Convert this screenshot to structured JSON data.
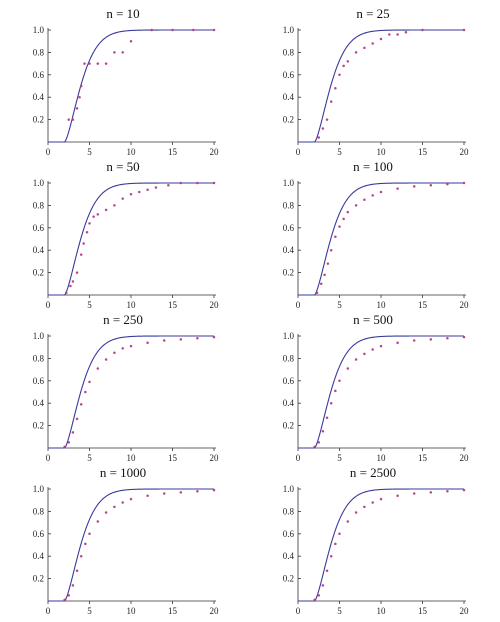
{
  "chart_data": [
    {
      "type": "line",
      "title": "n = 10",
      "x_ticks": [
        0,
        5,
        10,
        15,
        20
      ],
      "y_ticks": [
        0.2,
        0.4,
        0.6,
        0.8,
        1.0
      ],
      "xlim": [
        0,
        20
      ],
      "ylim": [
        0,
        1
      ],
      "series": [
        {
          "type": "line",
          "color": "#3a3a9c",
          "values": "smooth theoretical CDF (0 to 20)"
        },
        {
          "type": "scatter",
          "color": "#b23a8a",
          "x": [
            2.5,
            3.0,
            3.5,
            3.8,
            4.0,
            4.4,
            5.0,
            6.0,
            7.0,
            8.0,
            9.0,
            10.0,
            12.5,
            15.0,
            17.5,
            20.0
          ],
          "y": [
            0.2,
            0.2,
            0.3,
            0.4,
            0.5,
            0.7,
            0.7,
            0.7,
            0.7,
            0.8,
            0.8,
            0.9,
            1.0,
            1.0,
            1.0,
            1.0
          ]
        }
      ]
    },
    {
      "type": "line",
      "title": "n = 25",
      "x_ticks": [
        0,
        5,
        10,
        15,
        20
      ],
      "y_ticks": [
        0.2,
        0.4,
        0.6,
        0.8,
        1.0
      ],
      "xlim": [
        0,
        20
      ],
      "ylim": [
        0,
        1
      ],
      "series": [
        {
          "type": "line",
          "color": "#3a3a9c",
          "values": "smooth theoretical CDF (0 to 20)"
        },
        {
          "type": "scatter",
          "color": "#b23a8a",
          "x": [
            2.5,
            3.0,
            3.5,
            4.0,
            4.5,
            5.0,
            5.5,
            6.0,
            7.0,
            8.0,
            9.0,
            10.0,
            11.0,
            12.0,
            13.0,
            15.0,
            20.0
          ],
          "y": [
            0.04,
            0.12,
            0.2,
            0.36,
            0.48,
            0.6,
            0.68,
            0.72,
            0.8,
            0.84,
            0.88,
            0.92,
            0.96,
            0.96,
            0.98,
            1.0,
            1.0
          ]
        }
      ]
    },
    {
      "type": "line",
      "title": "n = 50",
      "x_ticks": [
        0,
        5,
        10,
        15,
        20
      ],
      "y_ticks": [
        0.2,
        0.4,
        0.6,
        0.8,
        1.0
      ],
      "xlim": [
        0,
        20
      ],
      "ylim": [
        0,
        1
      ],
      "series": [
        {
          "type": "line",
          "color": "#3a3a9c",
          "values": "smooth theoretical CDF (0 to 20)"
        },
        {
          "type": "scatter",
          "color": "#b23a8a",
          "x": [
            2.2,
            2.7,
            3.0,
            3.5,
            4.0,
            4.3,
            4.7,
            5.0,
            5.5,
            6.0,
            7.0,
            8.0,
            9.0,
            10.0,
            11.0,
            12.0,
            13.0,
            14.5,
            16.0,
            18.0,
            20.0
          ],
          "y": [
            0.02,
            0.08,
            0.12,
            0.2,
            0.36,
            0.46,
            0.56,
            0.64,
            0.7,
            0.72,
            0.76,
            0.8,
            0.86,
            0.9,
            0.92,
            0.94,
            0.96,
            0.98,
            1.0,
            1.0,
            1.0
          ]
        }
      ]
    },
    {
      "type": "line",
      "title": "n = 100",
      "x_ticks": [
        0,
        5,
        10,
        15,
        20
      ],
      "y_ticks": [
        0.2,
        0.4,
        0.6,
        0.8,
        1.0
      ],
      "xlim": [
        0,
        20
      ],
      "ylim": [
        0,
        1
      ],
      "series": [
        {
          "type": "line",
          "color": "#3a3a9c",
          "values": "smooth theoretical CDF (0 to 20)"
        },
        {
          "type": "scatter",
          "color": "#b23a8a",
          "x": [
            2.3,
            2.8,
            3.2,
            3.6,
            4.0,
            4.5,
            5.0,
            5.5,
            6.0,
            7.0,
            8.0,
            9.0,
            10.0,
            12.0,
            14.0,
            16.0,
            18.0,
            20.0
          ],
          "y": [
            0.02,
            0.1,
            0.18,
            0.28,
            0.4,
            0.52,
            0.61,
            0.68,
            0.74,
            0.8,
            0.85,
            0.89,
            0.92,
            0.95,
            0.97,
            0.98,
            0.99,
            1.0
          ]
        }
      ]
    },
    {
      "type": "line",
      "title": "n = 250",
      "x_ticks": [
        0,
        5,
        10,
        15,
        20
      ],
      "y_ticks": [
        0.2,
        0.4,
        0.6,
        0.8,
        1.0
      ],
      "xlim": [
        0,
        20
      ],
      "ylim": [
        0,
        1
      ],
      "series": [
        {
          "type": "line",
          "color": "#3a3a9c",
          "values": "smooth theoretical CDF (0 to 20)"
        },
        {
          "type": "scatter",
          "color": "#b23a8a",
          "x": [
            2.0,
            2.5,
            3.0,
            3.5,
            4.0,
            4.5,
            5.0,
            6.0,
            7.0,
            8.0,
            9.0,
            10.0,
            12.0,
            14.0,
            16.0,
            18.0,
            20.0
          ],
          "y": [
            0.01,
            0.05,
            0.14,
            0.26,
            0.39,
            0.5,
            0.59,
            0.71,
            0.79,
            0.85,
            0.89,
            0.91,
            0.94,
            0.96,
            0.97,
            0.98,
            0.99
          ]
        }
      ]
    },
    {
      "type": "line",
      "title": "n = 500",
      "x_ticks": [
        0,
        5,
        10,
        15,
        20
      ],
      "y_ticks": [
        0.2,
        0.4,
        0.6,
        0.8,
        1.0
      ],
      "xlim": [
        0,
        20
      ],
      "ylim": [
        0,
        1
      ],
      "series": [
        {
          "type": "line",
          "color": "#3a3a9c",
          "values": "smooth theoretical CDF (0 to 20)"
        },
        {
          "type": "scatter",
          "color": "#b23a8a",
          "x": [
            2.0,
            2.5,
            3.0,
            3.5,
            4.0,
            4.5,
            5.0,
            6.0,
            7.0,
            8.0,
            9.0,
            10.0,
            12.0,
            14.0,
            16.0,
            18.0,
            20.0
          ],
          "y": [
            0.01,
            0.05,
            0.15,
            0.27,
            0.4,
            0.51,
            0.6,
            0.71,
            0.79,
            0.84,
            0.88,
            0.91,
            0.94,
            0.96,
            0.97,
            0.98,
            0.99
          ]
        }
      ]
    },
    {
      "type": "line",
      "title": "n = 1000",
      "x_ticks": [
        0,
        5,
        10,
        15,
        20
      ],
      "y_ticks": [
        0.2,
        0.4,
        0.6,
        0.8,
        1.0
      ],
      "xlim": [
        0,
        20
      ],
      "ylim": [
        0,
        1
      ],
      "series": [
        {
          "type": "line",
          "color": "#3a3a9c",
          "values": "smooth theoretical CDF (0 to 20)"
        },
        {
          "type": "scatter",
          "color": "#b23a8a",
          "x": [
            2.0,
            2.5,
            3.0,
            3.5,
            4.0,
            4.5,
            5.0,
            6.0,
            7.0,
            8.0,
            9.0,
            10.0,
            12.0,
            14.0,
            16.0,
            18.0,
            20.0
          ],
          "y": [
            0.01,
            0.05,
            0.14,
            0.27,
            0.4,
            0.51,
            0.6,
            0.71,
            0.79,
            0.84,
            0.88,
            0.91,
            0.94,
            0.96,
            0.97,
            0.98,
            0.99
          ]
        }
      ]
    },
    {
      "type": "line",
      "title": "n = 2500",
      "x_ticks": [
        0,
        5,
        10,
        15,
        20
      ],
      "y_ticks": [
        0.2,
        0.4,
        0.6,
        0.8,
        1.0
      ],
      "xlim": [
        0,
        20
      ],
      "ylim": [
        0,
        1
      ],
      "series": [
        {
          "type": "line",
          "color": "#3a3a9c",
          "values": "smooth theoretical CDF (0 to 20)"
        },
        {
          "type": "scatter",
          "color": "#b23a8a",
          "x": [
            2.0,
            2.5,
            3.0,
            3.5,
            4.0,
            4.5,
            5.0,
            6.0,
            7.0,
            8.0,
            9.0,
            10.0,
            12.0,
            14.0,
            16.0,
            18.0,
            20.0
          ],
          "y": [
            0.01,
            0.05,
            0.14,
            0.27,
            0.4,
            0.51,
            0.6,
            0.71,
            0.79,
            0.84,
            0.88,
            0.91,
            0.94,
            0.96,
            0.97,
            0.98,
            0.99
          ]
        }
      ]
    }
  ]
}
